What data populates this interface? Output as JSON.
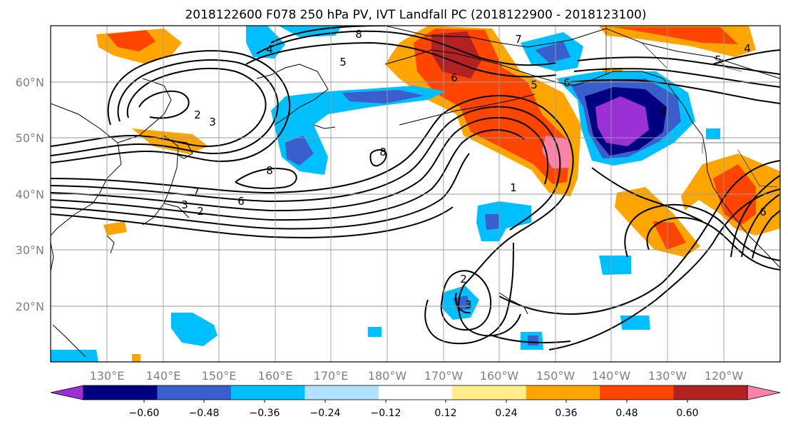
{
  "title": "2018122600 F078 250 hPa PV, IVT Landfall PC (2018122900 - 2018123100)",
  "map": {
    "latitude_labels": [
      "60°N",
      "50°N",
      "40°N",
      "30°N",
      "20°N"
    ],
    "longitude_labels": [
      "130°E",
      "140°E",
      "150°E",
      "160°E",
      "170°E",
      "180°W",
      "170°W",
      "160°W",
      "150°W",
      "140°W",
      "130°W",
      "120°W"
    ],
    "pv_contour_labels": [
      "8",
      "5",
      "7",
      "4",
      "6",
      "2",
      "3",
      "8",
      "8",
      "7",
      "6",
      "3",
      "2",
      "2",
      "3",
      "1",
      "4",
      "5",
      "6",
      "4",
      "5",
      "6"
    ]
  },
  "colorbar": {
    "colors": [
      "#9b30d6",
      "#000080",
      "#3a5fcd",
      "#00bfff",
      "#b0e2ff",
      "#ffffff",
      "#ffec8b",
      "#ffa500",
      "#ff4500",
      "#b22222",
      "#ff82ab"
    ],
    "tick_labels": [
      "−0.60",
      "−0.48",
      "−0.36",
      "−0.24",
      "−0.12",
      "0.12",
      "0.24",
      "0.36",
      "0.48",
      "0.60"
    ],
    "tick_values": [
      -0.6,
      -0.48,
      -0.36,
      -0.24,
      -0.12,
      0.12,
      0.24,
      0.36,
      0.48,
      0.6
    ],
    "extend": "both"
  }
}
